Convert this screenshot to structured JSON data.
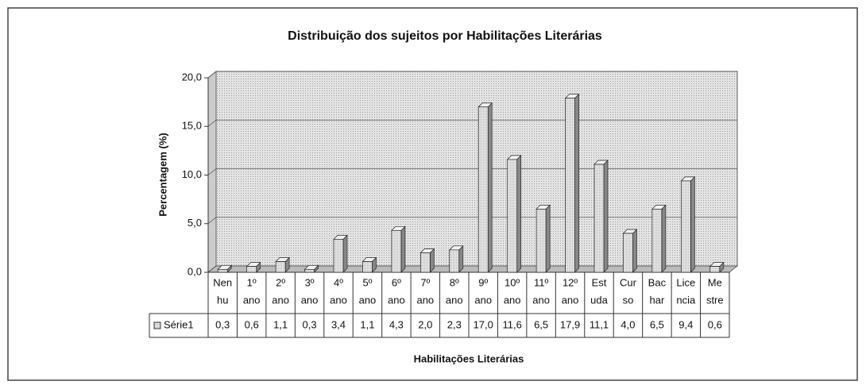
{
  "chart_data": {
    "type": "bar",
    "title": "Distribuição dos sujeitos por Habilitações Literárias",
    "y_label": "Percentagem (%)",
    "x_label": "Habilitações Literárias",
    "categories": [
      [
        "Nen",
        "hu"
      ],
      [
        "1º",
        "ano"
      ],
      [
        "2º",
        "ano"
      ],
      [
        "3º",
        "ano"
      ],
      [
        "4º",
        "ano"
      ],
      [
        "5º",
        "ano"
      ],
      [
        "6º",
        "ano"
      ],
      [
        "7º",
        "ano"
      ],
      [
        "8º",
        "ano"
      ],
      [
        "9º",
        "ano"
      ],
      [
        "10º",
        "ano"
      ],
      [
        "11º",
        "ano"
      ],
      [
        "12º",
        "ano"
      ],
      [
        "Est",
        "uda"
      ],
      [
        "Cur",
        "so"
      ],
      [
        "Bac",
        "har"
      ],
      [
        "Lice",
        "ncia"
      ],
      [
        "Me",
        "stre"
      ]
    ],
    "series": [
      {
        "name": "Série1",
        "color": "#d4d4d4",
        "values": [
          0.3,
          0.6,
          1.1,
          0.3,
          3.4,
          1.1,
          4.3,
          2.0,
          2.3,
          17.0,
          11.6,
          6.5,
          17.9,
          11.1,
          4.0,
          6.5,
          9.4,
          0.6
        ],
        "value_labels": [
          "0,3",
          "0,6",
          "1,1",
          "0,3",
          "3,4",
          "1,1",
          "4,3",
          "2,0",
          "2,3",
          "17,0",
          "11,6",
          "6,5",
          "17,9",
          "11,1",
          "4,0",
          "6,5",
          "9,4",
          "0,6"
        ]
      }
    ],
    "ylim": [
      0,
      20
    ],
    "yticks": [
      {
        "value": 0,
        "label": "0,0"
      },
      {
        "value": 5,
        "label": "5,0"
      },
      {
        "value": 10,
        "label": "10,0"
      },
      {
        "value": 15,
        "label": "15,0"
      },
      {
        "value": 20,
        "label": "20,0"
      }
    ],
    "grid": true
  }
}
